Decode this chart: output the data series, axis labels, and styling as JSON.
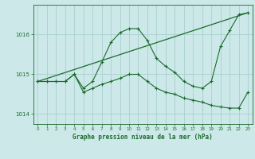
{
  "bg_color": "#cce8e8",
  "grid_color": "#aacfcf",
  "line_color": "#1a6b2a",
  "title": "Graphe pression niveau de la mer (hPa)",
  "xlim": [
    -0.5,
    23.5
  ],
  "ylim": [
    1013.75,
    1016.75
  ],
  "yticks": [
    1014,
    1015,
    1016
  ],
  "xticks": [
    0,
    1,
    2,
    3,
    4,
    5,
    6,
    7,
    8,
    9,
    10,
    11,
    12,
    13,
    14,
    15,
    16,
    17,
    18,
    19,
    20,
    21,
    22,
    23
  ],
  "line1_x": [
    0,
    1,
    2,
    3,
    4,
    5,
    6,
    7,
    8,
    9,
    10,
    11,
    12,
    13,
    14,
    15,
    16,
    17,
    18,
    19,
    20,
    21,
    22,
    23
  ],
  "line1_y": [
    1014.82,
    1014.82,
    1014.82,
    1014.82,
    1015.0,
    1014.65,
    1014.82,
    1015.3,
    1015.8,
    1016.05,
    1016.15,
    1016.15,
    1015.85,
    1015.4,
    1015.2,
    1015.05,
    1014.82,
    1014.7,
    1014.65,
    1014.82,
    1015.7,
    1016.1,
    1016.5,
    1016.55
  ],
  "line2_x": [
    0,
    1,
    2,
    3,
    4,
    5,
    6,
    7,
    8,
    9,
    10,
    11,
    12,
    13,
    14,
    15,
    16,
    17,
    18,
    19,
    20,
    21,
    22,
    23
  ],
  "line2_y": [
    1014.82,
    1014.82,
    1014.82,
    1014.82,
    1015.0,
    1014.55,
    1014.65,
    1014.75,
    1014.82,
    1014.9,
    1015.0,
    1015.0,
    1014.82,
    1014.65,
    1014.55,
    1014.5,
    1014.4,
    1014.35,
    1014.3,
    1014.22,
    1014.18,
    1014.15,
    1014.15,
    1014.55
  ],
  "line3_x": [
    0,
    23
  ],
  "line3_y": [
    1014.82,
    1016.55
  ]
}
